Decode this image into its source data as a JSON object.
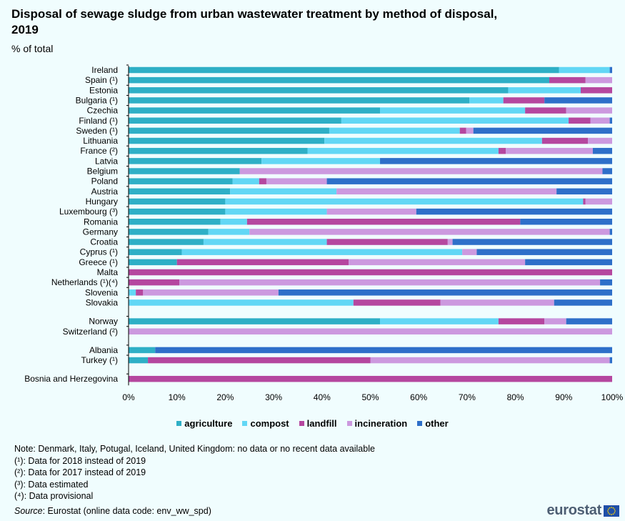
{
  "header": {
    "title": "Disposal of sewage sludge from urban wastewater treatment by method of disposal, 2019",
    "subtitle": "% of total"
  },
  "colors": {
    "agriculture": "#2eafc6",
    "compost": "#62d7f5",
    "landfill": "#b5479f",
    "incineration": "#cc99df",
    "other": "#2e6fc9"
  },
  "chart_data": {
    "type": "bar",
    "orientation": "horizontal",
    "stacked": true,
    "title": "Disposal of sewage sludge from urban wastewater treatment by method of disposal, 2019",
    "unit": "% of total",
    "xlim": [
      0,
      100
    ],
    "x_ticks": [
      "0%",
      "10%",
      "20%",
      "30%",
      "40%",
      "50%",
      "60%",
      "70%",
      "80%",
      "90%",
      "100%"
    ],
    "legend_position": "bottom",
    "series_names": [
      "agriculture",
      "compost",
      "landfill",
      "incineration",
      "other"
    ],
    "groups": [
      [
        {
          "label": "Ireland",
          "values": [
            89,
            10.5,
            0,
            0,
            0.5
          ]
        },
        {
          "label": "Spain (¹)",
          "values": [
            87,
            0,
            7.5,
            5.5,
            0
          ]
        },
        {
          "label": "Estonia",
          "values": [
            78.5,
            15,
            6.5,
            0,
            0
          ]
        },
        {
          "label": "Bulgaria (¹)",
          "values": [
            70.5,
            7,
            8.5,
            0,
            14
          ]
        },
        {
          "label": "Czechia",
          "values": [
            52,
            30,
            8.5,
            9.5,
            0
          ]
        },
        {
          "label": "Finland (¹)",
          "values": [
            44,
            47,
            4.5,
            4,
            0.5
          ]
        },
        {
          "label": "Sweden (¹)",
          "values": [
            41.5,
            27,
            1.3,
            1.5,
            28.7
          ]
        },
        {
          "label": "Lithuania",
          "values": [
            40.5,
            45,
            9.5,
            5,
            0
          ]
        },
        {
          "label": "France (²)",
          "values": [
            37,
            39.5,
            1.5,
            18,
            4
          ]
        },
        {
          "label": "Latvia",
          "values": [
            27.5,
            24.5,
            0,
            0,
            48
          ]
        },
        {
          "label": "Belgium",
          "values": [
            23,
            0,
            0,
            75,
            2
          ]
        },
        {
          "label": "Poland",
          "values": [
            21.5,
            5.5,
            1.5,
            12.5,
            59
          ]
        },
        {
          "label": "Austria",
          "values": [
            21,
            22,
            0,
            45.5,
            11.5
          ]
        },
        {
          "label": "Hungary",
          "values": [
            20,
            74,
            0.5,
            5.5,
            0
          ]
        },
        {
          "label": "Luxembourg (³)",
          "values": [
            20,
            21,
            0,
            18.5,
            40.5
          ]
        },
        {
          "label": "Romania",
          "values": [
            19,
            5.5,
            56.5,
            0,
            19
          ]
        },
        {
          "label": "Germany",
          "values": [
            16.5,
            8.5,
            0,
            74.5,
            0.5
          ]
        },
        {
          "label": "Croatia",
          "values": [
            15.5,
            25.5,
            25,
            1,
            33
          ]
        },
        {
          "label": "Cyprus (¹)",
          "values": [
            11,
            58,
            0,
            3,
            28
          ]
        },
        {
          "label": "Greece (¹)",
          "values": [
            10,
            0,
            35.5,
            36.5,
            18
          ]
        },
        {
          "label": "Malta",
          "values": [
            0,
            0,
            100,
            0,
            0
          ]
        },
        {
          "label": "Netherlands  (¹)(⁴)",
          "values": [
            0,
            0,
            10.5,
            87,
            2.5
          ]
        },
        {
          "label": "Slovenia",
          "values": [
            0,
            1.5,
            1.5,
            28,
            69
          ]
        },
        {
          "label": "Slovakia",
          "values": [
            0,
            46.5,
            18,
            23.5,
            12
          ]
        }
      ],
      [
        {
          "label": "Norway",
          "values": [
            52,
            24.5,
            9.5,
            4.5,
            9.5
          ]
        },
        {
          "label": "Switzerland (²)",
          "values": [
            0,
            0,
            0,
            100,
            0
          ]
        }
      ],
      [
        {
          "label": "Albania",
          "values": [
            5.5,
            0,
            0,
            0,
            94.5
          ]
        },
        {
          "label": "Turkey (¹)",
          "values": [
            4,
            0,
            46,
            49.5,
            0.5
          ]
        }
      ],
      [
        {
          "label": "Bosnia and Herzegovina",
          "values": [
            0,
            0,
            100,
            0,
            0
          ]
        }
      ]
    ]
  },
  "notes": [
    "Note: Denmark, Italy,  Potugal, Iceland, United Kingdom: no data or no recent data available",
    "(¹): Data for 2018 instead of 2019",
    "(²): Data for 2017 instead of 2019",
    "(³): Data estimated",
    "(⁴): Data provisional"
  ],
  "source": {
    "label": "Source",
    "text": ": Eurostat (online data code: env_ww_spd)"
  },
  "logo": {
    "text": "eurostat",
    "flag_icon": "eu-flag-icon"
  }
}
